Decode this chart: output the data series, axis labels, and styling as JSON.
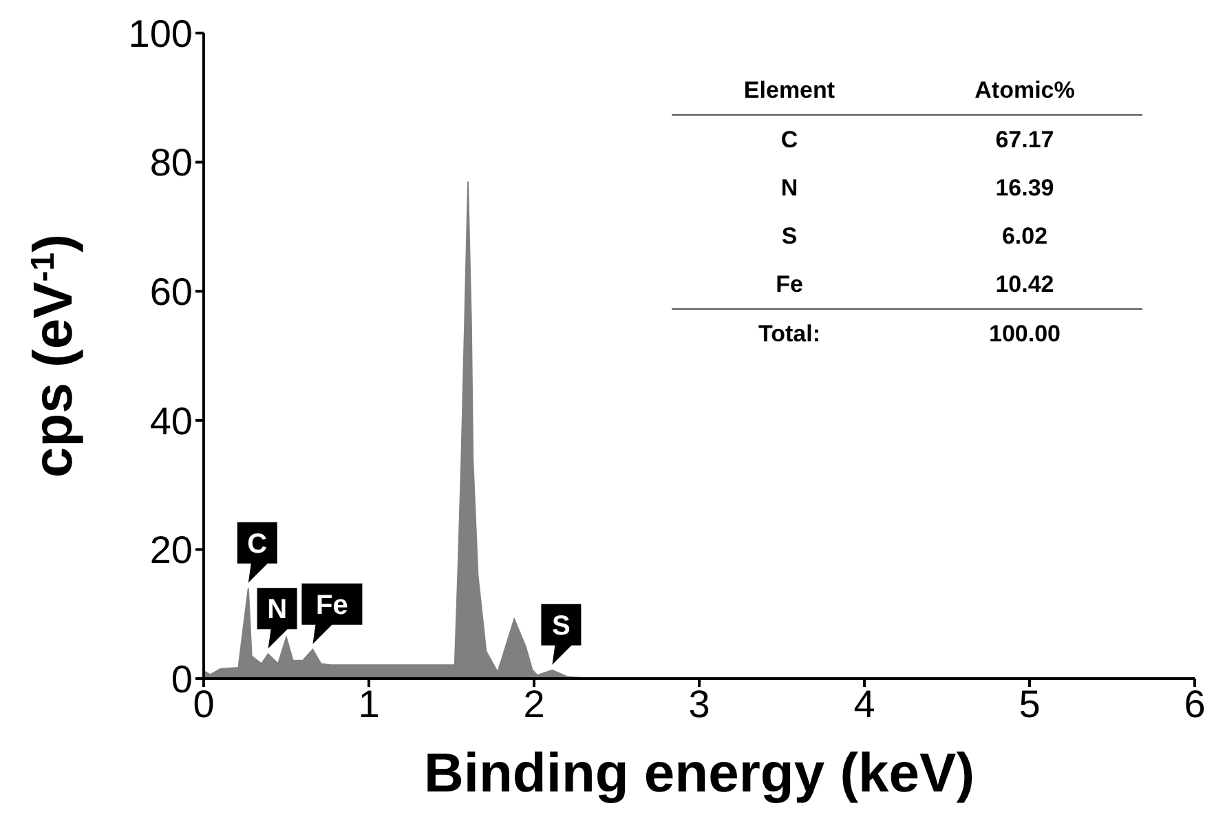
{
  "chart_data": {
    "type": "area",
    "xlabel": "Binding energy (keV)",
    "ylabel": "cps (eV$^{-1}$)",
    "x": [
      0,
      0.04,
      0.1,
      0.21,
      0.27,
      0.29,
      0.35,
      0.39,
      0.45,
      0.5,
      0.54,
      0.6,
      0.66,
      0.71,
      0.77,
      1.52,
      1.54,
      1.56,
      1.58,
      1.6,
      1.62,
      1.63,
      1.66,
      1.71,
      1.78,
      1.88,
      1.95,
      1.99,
      2.02,
      2.11,
      2.2,
      2.3,
      6
    ],
    "values": [
      1.2,
      0.6,
      1.5,
      1.7,
      14,
      3.5,
      2.3,
      3.8,
      2.3,
      6.4,
      2.8,
      2.8,
      4.5,
      2.3,
      2.1,
      2.1,
      17,
      34,
      55,
      77,
      55,
      34,
      16,
      4.2,
      1,
      9.2,
      4.9,
      1.3,
      0.5,
      1.3,
      0.3,
      0.1,
      0
    ],
    "color": "#808080",
    "xlim": [
      0,
      6
    ],
    "xticks": [
      0,
      1,
      2,
      3,
      4,
      5,
      6
    ],
    "ylim": [
      0,
      100
    ],
    "yticks": [
      0,
      20,
      40,
      60,
      80,
      100
    ],
    "annotations": [
      {
        "text": "C",
        "x": 0.27,
        "y": 14
      },
      {
        "text": "N",
        "x": 0.39,
        "y": 3.8
      },
      {
        "text": "Fe",
        "x": 0.66,
        "y": 4.5
      },
      {
        "text": "S",
        "x": 2.11,
        "y": 1.3
      },
      "Element",
      "Atomic%",
      "C",
      "67.17",
      "N",
      "16.39",
      "S",
      "6.02",
      "Fe",
      "10.42",
      "Total:",
      "100.00"
    ]
  }
}
